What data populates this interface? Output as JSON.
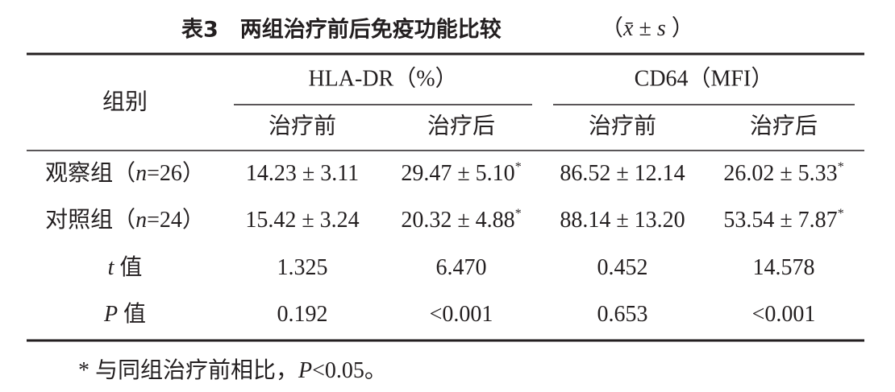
{
  "title": {
    "text": "表3　两组治疗前后免疫功能比较",
    "stats": [
      "（",
      "x̄",
      " ± ",
      "s",
      " ）"
    ]
  },
  "table": {
    "header": {
      "group": "组别",
      "col_groups": [
        "HLA-DR（%）",
        "CD64（MFI）"
      ],
      "subheaders": [
        "治疗前",
        "治疗后",
        "治疗前",
        "治疗后"
      ]
    },
    "rows": [
      {
        "label": [
          "观察组（",
          "n",
          "=26）"
        ],
        "cells": [
          {
            "text": "14.23 ± 3.11"
          },
          {
            "text": "29.47 ± 5.10",
            "sup": "*"
          },
          {
            "text": "86.52 ± 12.14"
          },
          {
            "text": "26.02 ± 5.33",
            "sup": "*"
          }
        ]
      },
      {
        "label": [
          "对照组（",
          "n",
          "=24）"
        ],
        "cells": [
          {
            "text": "15.42 ± 3.24"
          },
          {
            "text": "20.32 ± 4.88",
            "sup": "*"
          },
          {
            "text": "88.14 ± 13.20"
          },
          {
            "text": "53.54 ± 7.87",
            "sup": "*"
          }
        ]
      },
      {
        "label": [
          "t",
          " 值"
        ],
        "cells": [
          {
            "text": "1.325"
          },
          {
            "text": "6.470"
          },
          {
            "text": "0.452"
          },
          {
            "text": "14.578"
          }
        ]
      },
      {
        "label": [
          "P",
          " 值"
        ],
        "cells": [
          {
            "text": "0.192"
          },
          {
            "text": "<0.001"
          },
          {
            "text": "0.653"
          },
          {
            "text": "<0.001"
          }
        ]
      }
    ]
  },
  "footnote": [
    "* 与同组治疗前相比，",
    "P",
    "<0.05。"
  ]
}
